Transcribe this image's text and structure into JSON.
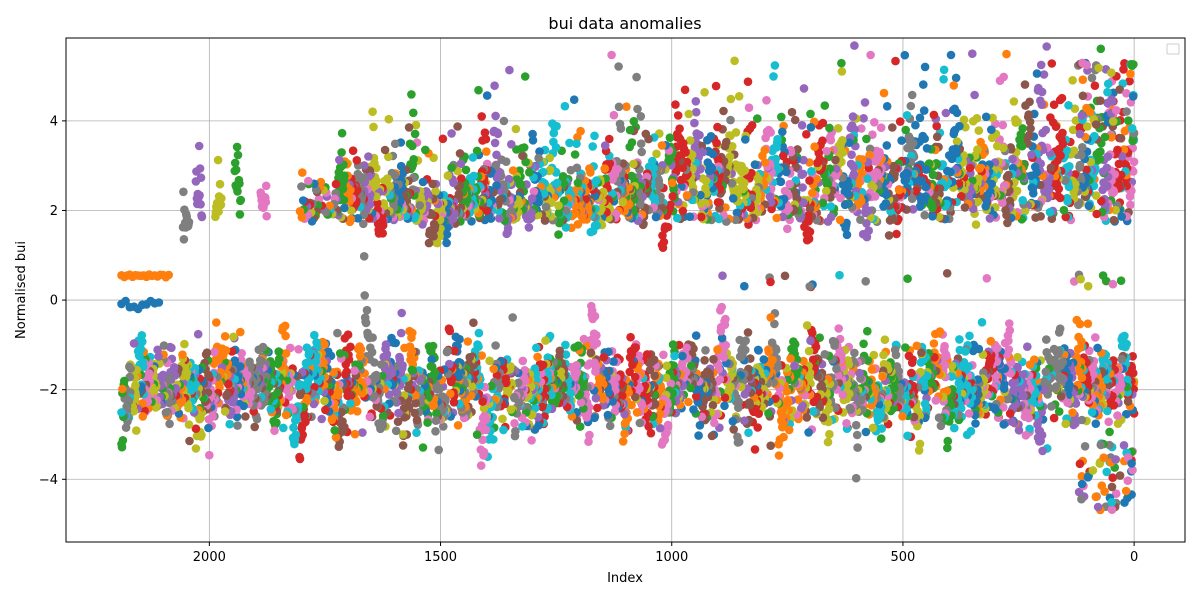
{
  "chart_data": {
    "type": "scatter",
    "title": "bui data anomalies",
    "xlabel": "Index",
    "ylabel": "Normalised bui",
    "x_inverted": true,
    "xlim": [
      2310,
      -110
    ],
    "ylim": [
      -5.4,
      5.85
    ],
    "xticks": [
      2000,
      1500,
      1000,
      500,
      0
    ],
    "yticks": [
      -4,
      -2,
      0,
      2,
      4
    ],
    "grid": true,
    "legend": {
      "placement": "top-right",
      "entries": []
    },
    "marker": "circle",
    "palette": [
      "#1f77b4",
      "#ff7f0e",
      "#2ca02c",
      "#d62728",
      "#9467bd",
      "#8c564b",
      "#e377c2",
      "#7f7f7f",
      "#bcbd22",
      "#17becf"
    ],
    "num_series": 10,
    "index_range": [
      0,
      2190
    ],
    "note_points": "dense overlapping series; points generated procedurally below approximating two clusters",
    "bands": [
      {
        "name": "upper cluster",
        "x_range": [
          0,
          2060
        ],
        "y_center": 2.0,
        "y_spread": [
          1.3,
          5.4
        ]
      },
      {
        "name": "lower cluster",
        "x_range": [
          0,
          2190
        ],
        "y_center": -2.0,
        "y_spread": [
          -4.8,
          -0.2
        ]
      }
    ]
  }
}
